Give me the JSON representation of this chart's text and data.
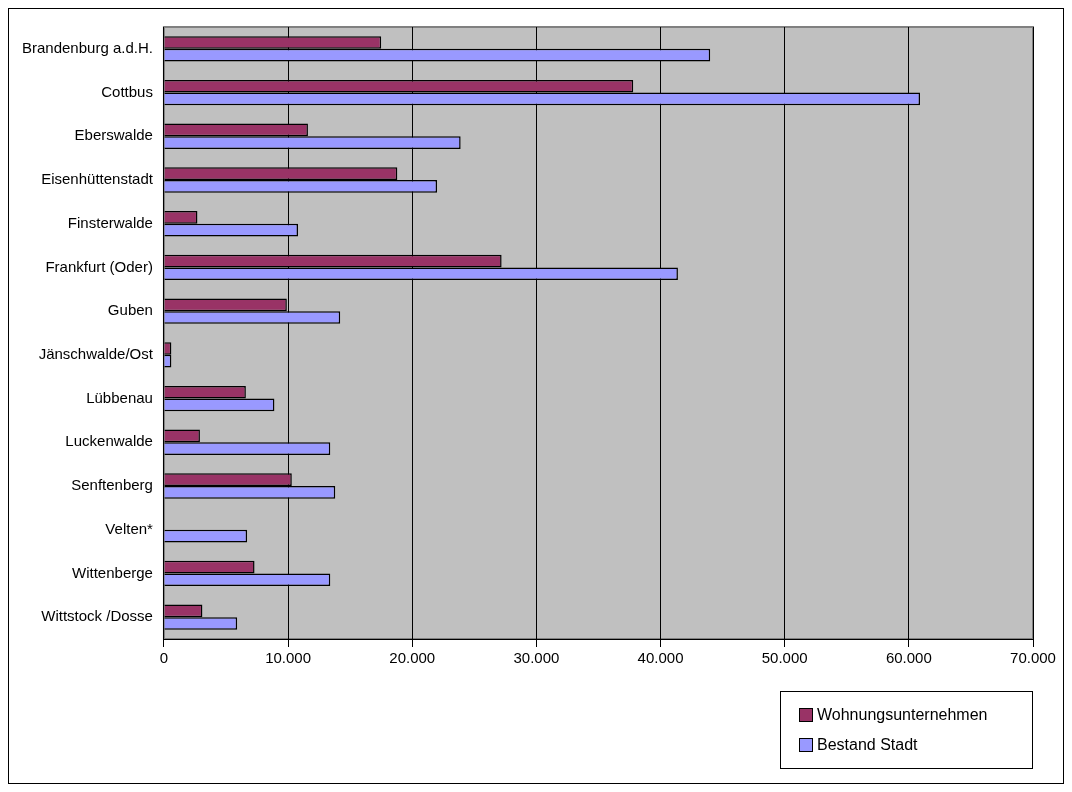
{
  "chart_data": {
    "type": "bar",
    "orientation": "horizontal",
    "categories": [
      "Brandenburg a.d.H.",
      "Cottbus",
      "Eberswalde",
      "Eisenhüttenstadt",
      "Finsterwalde",
      "Frankfurt (Oder)",
      "Guben",
      "Jänschwalde/Ost",
      "Lübbenau",
      "Luckenwalde",
      "Senftenberg",
      "Velten*",
      "Wittenberge",
      "Wittstock /Dosse"
    ],
    "series": [
      {
        "name": "Wohnungsunternehmen",
        "color": "#993366",
        "values": [
          17500,
          37800,
          11600,
          18800,
          2700,
          27200,
          9900,
          600,
          6600,
          2900,
          10300,
          null,
          7300,
          3100
        ]
      },
      {
        "name": "Bestand Stadt",
        "color": "#9999ff",
        "values": [
          44000,
          60900,
          23900,
          22000,
          10800,
          41400,
          14200,
          600,
          8900,
          13400,
          13800,
          6700,
          13400,
          5900
        ]
      }
    ],
    "xlim": [
      0,
      70000
    ],
    "xticks": [
      0,
      {
        "value": 10000,
        "label": "10.000"
      },
      {
        "value": 20000,
        "label": "20.000"
      },
      {
        "value": 30000,
        "label": "30.000"
      },
      {
        "value": 40000,
        "label": "40.000"
      },
      {
        "value": 50000,
        "label": "50.000"
      },
      {
        "value": 60000,
        "label": "60.000"
      },
      {
        "value": 70000,
        "label": "70.000"
      }
    ],
    "grid": "x",
    "legend": "bottom right"
  }
}
